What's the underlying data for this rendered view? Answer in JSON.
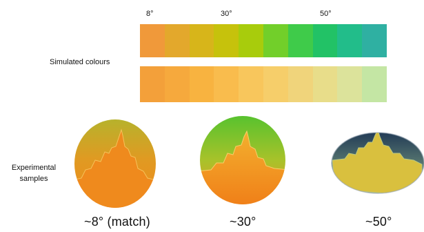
{
  "angle_ticks": [
    "8°",
    "30°",
    "50°"
  ],
  "simulated_label": "Simulated colours",
  "experimental_label_line1": "Experimental",
  "experimental_label_line2": "samples",
  "simulated_colours": [
    "#f0993a",
    "#e3a82c",
    "#d7b51a",
    "#c6c20c",
    "#a8cc0c",
    "#72cf2a",
    "#3fcb4a",
    "#22c266",
    "#22bd8a",
    "#2fb0a2"
  ],
  "lower_colours": [
    "#f3a03a",
    "#f6a93d",
    "#f8b340",
    "#f9bc4d",
    "#f8c65c",
    "#f6ce6a",
    "#f0d47b",
    "#e8dd8a",
    "#dce39b",
    "#c4e6a4"
  ],
  "samples": [
    {
      "caption": "~8° (match)",
      "top_color": "#c4b22a",
      "bottom_color": "#ef8d1e"
    },
    {
      "caption": "~30°",
      "top_color": "#5cc42e",
      "bottom_color": "#f28f20"
    },
    {
      "caption": "~50°",
      "top_color": "#2e4a62",
      "bottom_color": "#d9c23c"
    }
  ]
}
